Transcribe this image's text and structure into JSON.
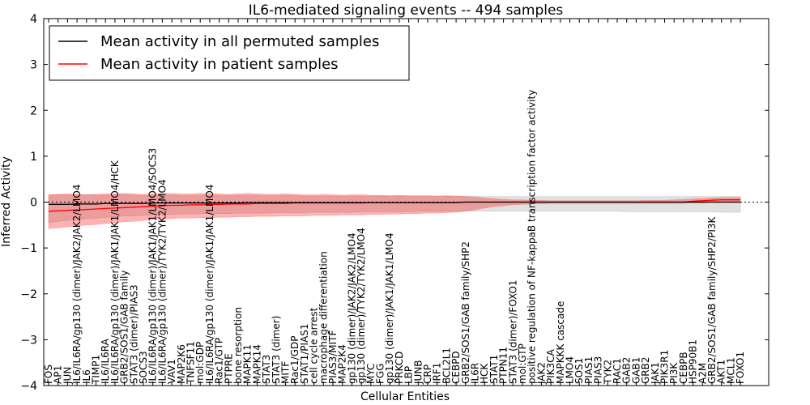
{
  "chart_data": {
    "type": "line",
    "title": "IL6-mediated signaling events -- 494 samples",
    "xlabel": "Cellular Entities",
    "ylabel": "Inferred Activity",
    "ylim": [
      -4,
      4
    ],
    "yticks": [
      -4,
      -3,
      -2,
      -1,
      0,
      1,
      2,
      3,
      4
    ],
    "legend_position": "top-left",
    "categories": [
      "FOS",
      "AP1",
      "JUN",
      "IL6/IL6RA/gp130 (dimer)/JAK2/JAK2/LMO4",
      "IL6",
      "TIMP1",
      "IL6/IL6RA",
      "IL6/IL6RA/gp130 (dimer)/JAK1/JAK1/LMO4/HCK",
      "GRB2/SOS1/GAB family",
      "STAT3 (dimer)/PIAS3",
      "SOCS3",
      "IL6/IL6RA/gp130 (dimer)/JAK1/JAK1/LMO4/SOCS3",
      "IL6/IL6RA/gp130 (dimer)/TYK2/TYK2/LMO4",
      "VAV1",
      "MAP2K6",
      "TNFSF11",
      "mol:GDP",
      "IL6/IL6RA/gp130 (dimer)/JAK1/JAK1/LMO4",
      "Rac1/GTP",
      "PTPRE",
      "bone resorption",
      "MAPK11",
      "MAPK14",
      "STAT3",
      "STAT3 (dimer)",
      "MITF",
      "Rac1/GDP",
      "STAT1/PIAS1",
      "cell cycle arrest",
      "macrophage differentiation",
      "PIAS3/MITF",
      "MAP2K4",
      "gp130 (dimer)/JAK2/JAK2/LMO4",
      "gp130 (dimer)/TYK2/TYK2/LMO4",
      "MYC",
      "FGG",
      "gp130 (dimer)/JAK1/JAK1/LMO4",
      "PRKCD",
      "LBP",
      "JUNB",
      "CRP",
      "IRF1",
      "BCL2L1",
      "CEBPD",
      "GRB2/SOS1/GAB family/SHP2",
      "IL6R",
      "HCK",
      "STAT1",
      "PTPN11",
      "STAT3 (dimer)/FOXO1",
      "mol:GTP",
      "positive regulation of NF-kappaB transcription factor activity",
      "JAK2",
      "PIK3CA",
      "MAPKKK cascade",
      "LMO4",
      "SOS1",
      "PIAS1",
      "PIAS3",
      "TYK2",
      "RAC1",
      "GAB2",
      "GAB1",
      "GRB2",
      "JAK1",
      "PIK3R1",
      "PI3K",
      "CEBPB",
      "HSP90B1",
      "A2M",
      "GRB2/SOS1/GAB family/SHP2/PI3K",
      "AKT1",
      "MCL1",
      "FOXO1"
    ],
    "series": [
      {
        "name": "Mean activity in all permuted samples",
        "color": "#000000",
        "values": [
          -0.05,
          -0.05,
          -0.05,
          -0.04,
          -0.04,
          -0.04,
          -0.03,
          -0.03,
          -0.03,
          -0.03,
          -0.03,
          -0.02,
          -0.02,
          -0.02,
          -0.02,
          -0.02,
          -0.02,
          -0.02,
          -0.02,
          -0.02,
          -0.02,
          -0.01,
          -0.01,
          -0.01,
          -0.01,
          -0.01,
          -0.01,
          -0.01,
          -0.01,
          -0.01,
          -0.01,
          -0.01,
          -0.01,
          -0.01,
          -0.01,
          -0.01,
          -0.01,
          -0.01,
          -0.01,
          -0.01,
          -0.01,
          -0.01,
          -0.01,
          -0.01,
          0.0,
          0.0,
          0.0,
          0.0,
          0.0,
          0.0,
          0.0,
          0.0,
          0.0,
          0.0,
          0.0,
          0.0,
          0.0,
          0.0,
          0.0,
          0.0,
          0.0,
          0.0,
          0.0,
          0.0,
          0.0,
          0.0,
          0.0,
          0.0,
          0.0,
          0.0,
          0.0,
          0.0,
          0.0,
          0.0
        ],
        "lower": [
          -0.45,
          -0.42,
          -0.4,
          -0.38,
          -0.36,
          -0.35,
          -0.33,
          -0.32,
          -0.3,
          -0.3,
          -0.29,
          -0.28,
          -0.27,
          -0.27,
          -0.26,
          -0.26,
          -0.25,
          -0.25,
          -0.25,
          -0.25,
          -0.24,
          -0.24,
          -0.24,
          -0.24,
          -0.23,
          -0.23,
          -0.23,
          -0.23,
          -0.22,
          -0.22,
          -0.22,
          -0.22,
          -0.22,
          -0.21,
          -0.21,
          -0.21,
          -0.21,
          -0.21,
          -0.21,
          -0.2,
          -0.2,
          -0.2,
          -0.2,
          -0.2,
          -0.2,
          -0.2,
          -0.2,
          -0.2,
          -0.2,
          -0.2,
          -0.2,
          -0.2,
          -0.2,
          -0.2,
          -0.2,
          -0.2,
          -0.2,
          -0.2,
          -0.2,
          -0.2,
          -0.2,
          -0.21,
          -0.21,
          -0.21,
          -0.21,
          -0.21,
          -0.21,
          -0.21,
          -0.21,
          -0.21,
          -0.21,
          -0.22,
          -0.22,
          -0.22
        ],
        "upper": [
          0.16,
          0.16,
          0.15,
          0.17,
          0.16,
          0.15,
          0.15,
          0.16,
          0.16,
          0.15,
          0.14,
          0.15,
          0.15,
          0.15,
          0.14,
          0.14,
          0.14,
          0.15,
          0.14,
          0.14,
          0.14,
          0.14,
          0.14,
          0.14,
          0.14,
          0.14,
          0.14,
          0.13,
          0.13,
          0.13,
          0.13,
          0.13,
          0.13,
          0.13,
          0.13,
          0.13,
          0.13,
          0.13,
          0.13,
          0.13,
          0.13,
          0.13,
          0.13,
          0.13,
          0.13,
          0.13,
          0.12,
          0.12,
          0.12,
          0.12,
          0.12,
          0.12,
          0.12,
          0.12,
          0.12,
          0.12,
          0.12,
          0.12,
          0.12,
          0.12,
          0.12,
          0.12,
          0.12,
          0.12,
          0.12,
          0.12,
          0.12,
          0.12,
          0.12,
          0.12,
          0.12,
          0.12,
          0.12,
          0.12
        ]
      },
      {
        "name": "Mean activity in patient samples",
        "color": "#ff0000",
        "values": [
          -0.2,
          -0.19,
          -0.18,
          -0.17,
          -0.16,
          -0.15,
          -0.14,
          -0.13,
          -0.12,
          -0.11,
          -0.1,
          -0.09,
          -0.08,
          -0.07,
          -0.07,
          -0.06,
          -0.06,
          -0.05,
          -0.05,
          -0.04,
          -0.04,
          -0.04,
          -0.03,
          -0.03,
          -0.03,
          -0.03,
          -0.02,
          -0.02,
          -0.02,
          -0.02,
          -0.02,
          -0.02,
          -0.02,
          -0.02,
          -0.01,
          -0.01,
          -0.01,
          -0.01,
          -0.01,
          -0.01,
          -0.01,
          -0.01,
          -0.01,
          -0.01,
          0.0,
          0.0,
          0.0,
          0.0,
          0.0,
          0.0,
          0.0,
          0.0,
          0.0,
          0.0,
          0.0,
          0.0,
          0.0,
          0.0,
          0.0,
          0.0,
          0.0,
          0.0,
          0.0,
          0.0,
          0.0,
          0.0,
          0.0,
          0.0,
          0.02,
          0.03,
          0.04,
          0.05,
          0.05,
          0.05
        ],
        "lower": [
          -0.58,
          -0.56,
          -0.54,
          -0.52,
          -0.5,
          -0.49,
          -0.47,
          -0.45,
          -0.43,
          -0.42,
          -0.4,
          -0.38,
          -0.37,
          -0.36,
          -0.35,
          -0.35,
          -0.34,
          -0.34,
          -0.33,
          -0.33,
          -0.32,
          -0.32,
          -0.31,
          -0.31,
          -0.31,
          -0.3,
          -0.3,
          -0.3,
          -0.29,
          -0.29,
          -0.29,
          -0.28,
          -0.28,
          -0.28,
          -0.27,
          -0.27,
          -0.26,
          -0.26,
          -0.25,
          -0.25,
          -0.24,
          -0.24,
          -0.23,
          -0.22,
          -0.2,
          -0.17,
          -0.13,
          -0.1,
          -0.08,
          -0.06,
          -0.05,
          -0.04,
          -0.04,
          -0.03,
          -0.03,
          -0.03,
          -0.03,
          -0.03,
          -0.03,
          -0.03,
          -0.03,
          -0.03,
          -0.03,
          -0.03,
          -0.03,
          -0.03,
          -0.03,
          -0.03,
          -0.02,
          -0.02,
          -0.01,
          -0.01,
          -0.01,
          -0.01
        ],
        "upper": [
          0.16,
          0.17,
          0.18,
          0.17,
          0.16,
          0.17,
          0.18,
          0.18,
          0.19,
          0.18,
          0.17,
          0.18,
          0.19,
          0.19,
          0.18,
          0.18,
          0.19,
          0.19,
          0.18,
          0.17,
          0.18,
          0.19,
          0.18,
          0.17,
          0.17,
          0.18,
          0.17,
          0.16,
          0.16,
          0.17,
          0.16,
          0.15,
          0.16,
          0.16,
          0.15,
          0.15,
          0.14,
          0.15,
          0.14,
          0.14,
          0.14,
          0.13,
          0.14,
          0.13,
          0.12,
          0.11,
          0.09,
          0.08,
          0.06,
          0.05,
          0.05,
          0.04,
          0.04,
          0.03,
          0.03,
          0.03,
          0.03,
          0.03,
          0.03,
          0.03,
          0.03,
          0.03,
          0.03,
          0.04,
          0.04,
          0.04,
          0.05,
          0.06,
          0.07,
          0.08,
          0.09,
          0.1,
          0.1,
          0.1
        ]
      }
    ]
  }
}
